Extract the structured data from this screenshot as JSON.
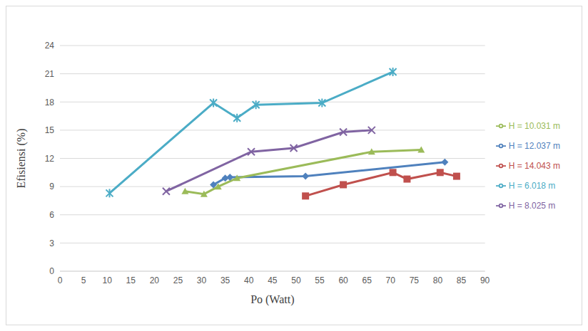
{
  "chart_data": {
    "type": "line",
    "x_label": "Po (Watt)",
    "y_label": "Efisiensi (%)",
    "xlim": [
      0,
      90
    ],
    "xticks": [
      0,
      5,
      10,
      15,
      20,
      25,
      30,
      35,
      40,
      45,
      50,
      55,
      60,
      65,
      70,
      75,
      80,
      85,
      90
    ],
    "ylim": [
      0,
      24
    ],
    "yticks": [
      0,
      3,
      6,
      9,
      12,
      15,
      18,
      21,
      24
    ],
    "grid": true,
    "legend": "right",
    "series": [
      {
        "name": "H = 14.043 m",
        "color": "#c0504d",
        "marker": "square",
        "x": [
          52,
          60,
          70.5,
          73.5,
          80.5,
          84
        ],
        "values": [
          8.0,
          9.2,
          10.5,
          9.8,
          10.5,
          10.1
        ]
      },
      {
        "name": "H = 12.037 m",
        "color": "#4f81bd",
        "marker": "diamond",
        "x": [
          32.5,
          35,
          36,
          52,
          81.5
        ],
        "values": [
          9.2,
          9.9,
          10.0,
          10.1,
          11.6
        ]
      },
      {
        "name": "H = 10.031 m",
        "color": "#9bbb59",
        "marker": "triangle",
        "x": [
          26.5,
          30.5,
          33.5,
          37.5,
          66,
          76.5
        ],
        "values": [
          8.5,
          8.2,
          9.0,
          9.9,
          12.7,
          12.9
        ]
      },
      {
        "name": "H = 8.025 m",
        "color": "#8064a2",
        "marker": "x",
        "x": [
          22.5,
          40.5,
          49.5,
          60,
          66
        ],
        "values": [
          8.5,
          12.7,
          13.1,
          14.8,
          15.0
        ]
      },
      {
        "name": "H = 6.018 m",
        "color": "#4bacc6",
        "marker": "star",
        "x": [
          10.5,
          32.5,
          37.5,
          41.5,
          55.5,
          70.5
        ],
        "values": [
          8.3,
          17.9,
          16.3,
          17.7,
          17.9,
          21.2
        ]
      }
    ]
  }
}
